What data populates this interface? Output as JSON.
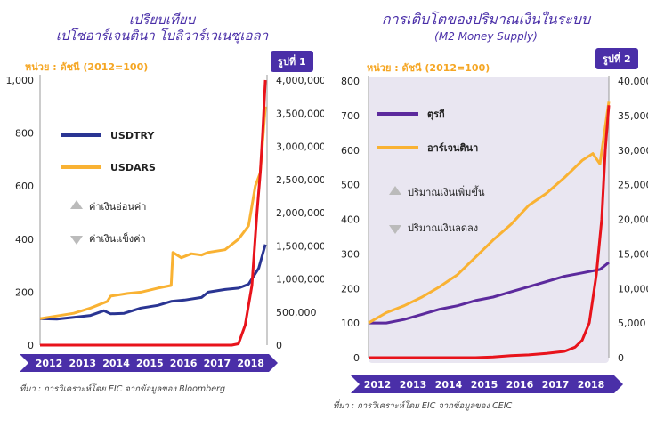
{
  "left": {
    "title_line1": "เปรียบเทียบ",
    "title_line2": "เปโซอาร์เจนตินา โบลิวาร์เวเนซุเอลา",
    "unit": "หน่วย : ดัชนี (2012=100)",
    "fig_label": "รูปที่ 1",
    "source": "ที่มา : การวิเคราะห์โดย EIC จากข้อมูลของ Bloomberg"
  },
  "right": {
    "title": "การเติบโตของปริมาณเงินในระบบ",
    "subtitle": "(M2 Money Supply)",
    "unit": "หน่วย : ดัชนี (2012=100)",
    "fig_label": "รูปที่ 2",
    "source": "ที่มา : การวิเคราะห์โดย EIC จากข้อมูลของ CEIC"
  },
  "colors": {
    "purple": "#4a2fa8",
    "blue": "#2a3593",
    "orange": "#f9b233",
    "red": "#e8131b",
    "turkey_purple": "#5c2a9d"
  },
  "chart_data": [
    {
      "type": "line",
      "title": "",
      "x_axis": [
        "2012",
        "2013",
        "2014",
        "2015",
        "2016",
        "2017",
        "2018"
      ],
      "y_left_ticks": [
        "0",
        "200",
        "400",
        "600",
        "800",
        "1,000"
      ],
      "y_right_ticks": [
        "0",
        "500,000",
        "1,000,000",
        "1,500,000",
        "2,000,000",
        "2,500,000",
        "3,000,000",
        "3,500,000",
        "4,000,000"
      ],
      "ylim_left": [
        0,
        1000
      ],
      "ylim_right": [
        0,
        4000000
      ],
      "legend": [
        "USDTRY",
        "USDARS"
      ],
      "annotations": [
        "ค่าเงินอ่อนค่า",
        "ค่าเงินแข็งค่า"
      ],
      "series": [
        {
          "name": "USDTRY",
          "axis": "left",
          "color": "#2a3593",
          "x": [
            2012.0,
            2012.5,
            2013.0,
            2013.5,
            2013.9,
            2014.1,
            2014.5,
            2015.0,
            2015.5,
            2015.9,
            2016.3,
            2016.8,
            2017.0,
            2017.5,
            2017.9,
            2018.2,
            2018.5,
            2018.7
          ],
          "y": [
            100,
            98,
            105,
            112,
            130,
            118,
            120,
            140,
            150,
            165,
            170,
            180,
            200,
            210,
            215,
            230,
            290,
            380
          ]
        },
        {
          "name": "USDARS",
          "axis": "left",
          "color": "#f9b233",
          "x": [
            2012.0,
            2012.5,
            2013.0,
            2013.5,
            2014.0,
            2014.1,
            2014.6,
            2015.0,
            2015.5,
            2015.9,
            2015.95,
            2016.2,
            2016.5,
            2016.8,
            2017.0,
            2017.5,
            2017.9,
            2018.2,
            2018.4,
            2018.55,
            2018.7
          ],
          "y": [
            100,
            110,
            120,
            140,
            165,
            185,
            195,
            200,
            215,
            225,
            350,
            330,
            345,
            340,
            350,
            360,
            400,
            450,
            600,
            650,
            900
          ]
        },
        {
          "name": "",
          "axis": "right",
          "color": "#e8131b",
          "x": [
            2012.0,
            2017.7,
            2017.9,
            2018.1,
            2018.3,
            2018.45,
            2018.55,
            2018.62,
            2018.7
          ],
          "y": [
            0,
            0,
            20000,
            300000,
            900000,
            2000000,
            2600000,
            3200000,
            4000000
          ]
        }
      ]
    },
    {
      "type": "line",
      "title": "การเติบโตของปริมาณเงินในระบบ",
      "subtitle": "(M2 Money Supply)",
      "x_axis": [
        "2012",
        "2013",
        "2014",
        "2015",
        "2016",
        "2017",
        "2018"
      ],
      "y_left_ticks": [
        "0",
        "100",
        "200",
        "300",
        "400",
        "500",
        "600",
        "700",
        "800"
      ],
      "y_right_ticks": [
        "0",
        "5,000",
        "10,000",
        "15,000",
        "20,000",
        "25,000",
        "30,000",
        "35,000",
        "40,000"
      ],
      "ylim_left": [
        0,
        800
      ],
      "ylim_right": [
        0,
        40000
      ],
      "legend": [
        "ตุรกี",
        "อาร์เจนตินา"
      ],
      "annotations": [
        "ปริมาณเงินเพิ่มขึ้น",
        "ปริมาณเงินลดลง"
      ],
      "series": [
        {
          "name": "ตุรกี",
          "axis": "left",
          "color": "#5c2a9d",
          "x": [
            2012.0,
            2012.5,
            2013.0,
            2013.5,
            2014.0,
            2014.5,
            2015.0,
            2015.5,
            2016.0,
            2016.5,
            2017.0,
            2017.5,
            2018.0,
            2018.5,
            2018.75
          ],
          "y": [
            100,
            100,
            110,
            125,
            140,
            150,
            165,
            175,
            190,
            205,
            220,
            235,
            245,
            255,
            275
          ]
        },
        {
          "name": "อาร์เจนตินา",
          "axis": "left",
          "color": "#f9b233",
          "x": [
            2012.0,
            2012.5,
            2013.0,
            2013.5,
            2014.0,
            2014.5,
            2015.0,
            2015.5,
            2016.0,
            2016.5,
            2017.0,
            2017.5,
            2018.0,
            2018.3,
            2018.5,
            2018.75
          ],
          "y": [
            100,
            130,
            150,
            175,
            205,
            240,
            290,
            340,
            385,
            440,
            475,
            520,
            570,
            590,
            560,
            740
          ]
        },
        {
          "name": "",
          "axis": "right",
          "color": "#e8131b",
          "x": [
            2012.0,
            2015.0,
            2015.5,
            2016.0,
            2016.5,
            2017.0,
            2017.5,
            2017.8,
            2018.0,
            2018.2,
            2018.4,
            2018.55,
            2018.65,
            2018.75
          ],
          "y": [
            0,
            0,
            100,
            300,
            400,
            600,
            900,
            1500,
            2500,
            5000,
            12000,
            20000,
            30000,
            36500
          ]
        }
      ]
    }
  ]
}
